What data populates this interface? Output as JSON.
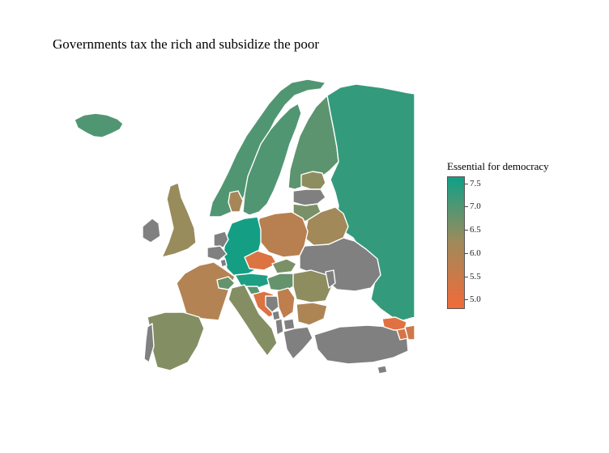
{
  "title": "Governments tax the rich and subsidize the poor",
  "legend": {
    "title": "Essential for democracy",
    "ticks": [
      "7.5",
      "7.0",
      "6.5",
      "6.0",
      "5.5",
      "5.0"
    ]
  },
  "colors": {
    "high": "#0fa087",
    "mid": "#a08a5a",
    "low": "#f26a3a",
    "no_data": "#808080"
  },
  "chart_data": {
    "type": "choropleth",
    "title": "Governments tax the rich and subsidize the poor",
    "legend_title": "Essential for democracy",
    "scale_range": [
      4.8,
      7.65
    ],
    "legend_placement": "right",
    "countries": [
      {
        "name": "Iceland",
        "value": 7.0
      },
      {
        "name": "Norway",
        "value": 7.0
      },
      {
        "name": "Sweden",
        "value": 7.0
      },
      {
        "name": "Finland",
        "value": 6.9
      },
      {
        "name": "Russia",
        "value": 7.3
      },
      {
        "name": "Estonia",
        "value": 6.4
      },
      {
        "name": "Latvia",
        "value": null
      },
      {
        "name": "Lithuania",
        "value": 6.6
      },
      {
        "name": "Belarus",
        "value": 6.2
      },
      {
        "name": "Ukraine",
        "value": null
      },
      {
        "name": "Poland",
        "value": 5.8
      },
      {
        "name": "Germany",
        "value": 7.6
      },
      {
        "name": "Netherlands",
        "value": null
      },
      {
        "name": "Belgium",
        "value": null
      },
      {
        "name": "Luxembourg",
        "value": null
      },
      {
        "name": "Denmark",
        "value": 6.1
      },
      {
        "name": "United Kingdom",
        "value": 6.3
      },
      {
        "name": "Ireland",
        "value": null
      },
      {
        "name": "France",
        "value": 5.9
      },
      {
        "name": "Switzerland",
        "value": 6.8
      },
      {
        "name": "Austria",
        "value": 7.5
      },
      {
        "name": "Czechia",
        "value": 5.2
      },
      {
        "name": "Slovakia",
        "value": 6.6
      },
      {
        "name": "Hungary",
        "value": 6.8
      },
      {
        "name": "Slovenia",
        "value": 6.9
      },
      {
        "name": "Croatia",
        "value": 5.2
      },
      {
        "name": "Bosnia and Herzegovina",
        "value": null
      },
      {
        "name": "Serbia",
        "value": 5.7
      },
      {
        "name": "Montenegro",
        "value": null
      },
      {
        "name": "Albania",
        "value": null
      },
      {
        "name": "North Macedonia",
        "value": null
      },
      {
        "name": "Romania",
        "value": 6.4
      },
      {
        "name": "Moldova",
        "value": null
      },
      {
        "name": "Bulgaria",
        "value": 6.0
      },
      {
        "name": "Greece",
        "value": null
      },
      {
        "name": "Turkey",
        "value": null
      },
      {
        "name": "Italy",
        "value": 6.5
      },
      {
        "name": "Spain",
        "value": 6.5
      },
      {
        "name": "Portugal",
        "value": null
      },
      {
        "name": "Georgia",
        "value": 5.1
      },
      {
        "name": "Armenia",
        "value": 5.3
      },
      {
        "name": "Azerbaijan",
        "value": 5.4
      },
      {
        "name": "Cyprus",
        "value": null
      }
    ]
  }
}
